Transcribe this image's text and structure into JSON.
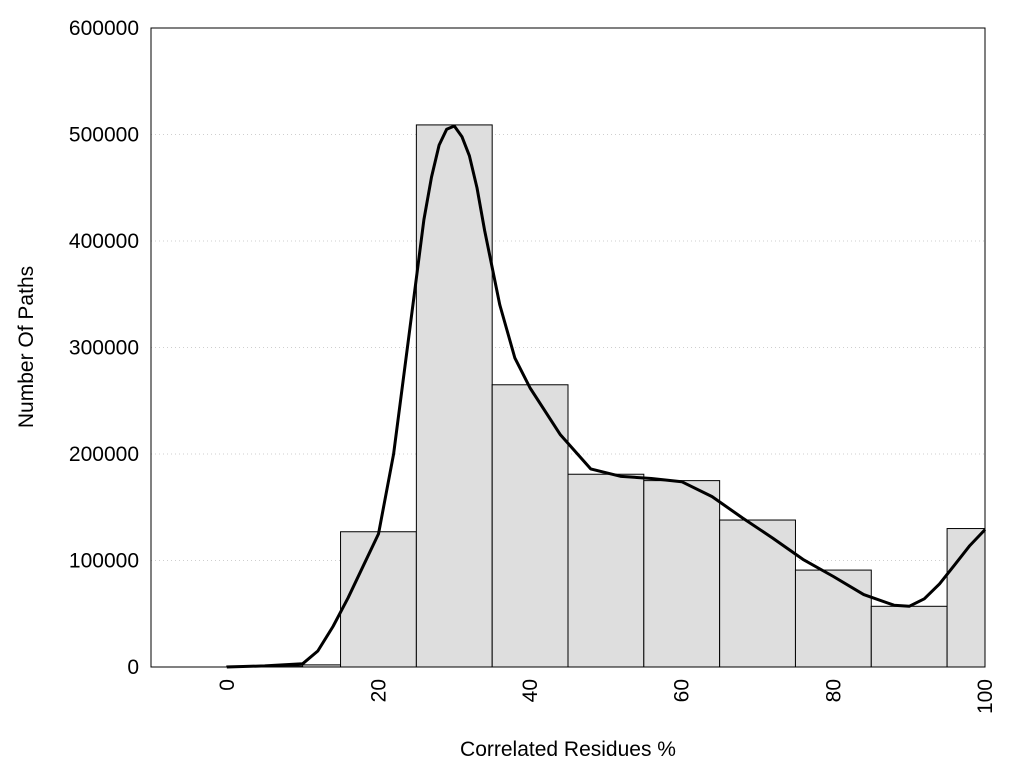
{
  "chart_data": {
    "type": "bar",
    "xlabel": "Correlated Residues %",
    "ylabel": "Number Of Paths",
    "xlim": [
      -10,
      100
    ],
    "ylim": [
      0,
      600000
    ],
    "x_ticks": [
      "0",
      "20",
      "40",
      "60",
      "80",
      "100"
    ],
    "y_ticks": [
      "0",
      "100000",
      "200000",
      "300000",
      "400000",
      "500000",
      "600000"
    ],
    "grid": true,
    "bar_color": "#dedede",
    "bars": [
      {
        "x0": 0,
        "x1": 10,
        "value": 1000
      },
      {
        "x0": 10,
        "x1": 15,
        "value": 2000
      },
      {
        "x0": 15,
        "x1": 25,
        "value": 127000
      },
      {
        "x0": 25,
        "x1": 35,
        "value": 509000
      },
      {
        "x0": 35,
        "x1": 45,
        "value": 265000
      },
      {
        "x0": 45,
        "x1": 55,
        "value": 181000
      },
      {
        "x0": 55,
        "x1": 65,
        "value": 175000
      },
      {
        "x0": 65,
        "x1": 75,
        "value": 138000
      },
      {
        "x0": 75,
        "x1": 85,
        "value": 91000
      },
      {
        "x0": 85,
        "x1": 95,
        "value": 57000
      },
      {
        "x0": 95,
        "x1": 100,
        "value": 130000
      }
    ],
    "curve": {
      "x": [
        0,
        5,
        10,
        12,
        14,
        16,
        18,
        20,
        22,
        24,
        26,
        27,
        28,
        29,
        30,
        31,
        32,
        33,
        34,
        36,
        38,
        40,
        44,
        48,
        52,
        56,
        60,
        64,
        68,
        72,
        76,
        80,
        84,
        88,
        90,
        92,
        94,
        96,
        98,
        100
      ],
      "y": [
        0,
        1000,
        3000,
        15000,
        38000,
        65000,
        95000,
        125000,
        200000,
        310000,
        420000,
        460000,
        490000,
        505000,
        508000,
        498000,
        480000,
        450000,
        410000,
        340000,
        290000,
        262000,
        218000,
        186000,
        179000,
        177000,
        174000,
        160000,
        140000,
        121000,
        101000,
        85000,
        68000,
        58000,
        57000,
        64000,
        78000,
        96000,
        114000,
        129000
      ]
    }
  }
}
